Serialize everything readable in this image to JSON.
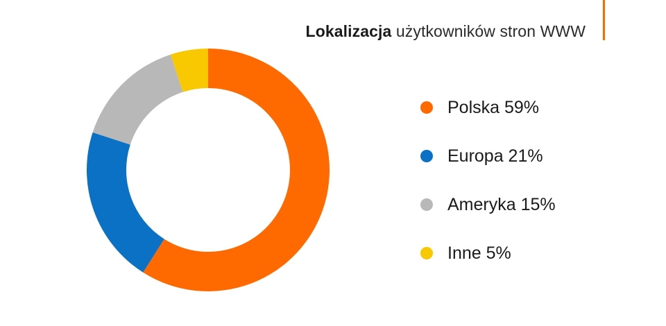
{
  "title": {
    "bold": "Lokalizacja",
    "regular": "użytkowników stron WWW"
  },
  "colors": {
    "accent": "#ff6a00"
  },
  "chart_data": {
    "type": "pie",
    "style": "donut",
    "title": "Lokalizacja użytkowników stron WWW",
    "series": [
      {
        "name": "Polska",
        "value": 59,
        "label": "Polska 59%",
        "color": "#ff6a00"
      },
      {
        "name": "Europa",
        "value": 21,
        "label": "Europa 21%",
        "color": "#0a71c4"
      },
      {
        "name": "Ameryka",
        "value": 15,
        "label": "Ameryka 15%",
        "color": "#b8b8b8"
      },
      {
        "name": "Inne",
        "value": 5,
        "label": "Inne 5%",
        "color": "#f8c800"
      }
    ],
    "legend_position": "right"
  }
}
